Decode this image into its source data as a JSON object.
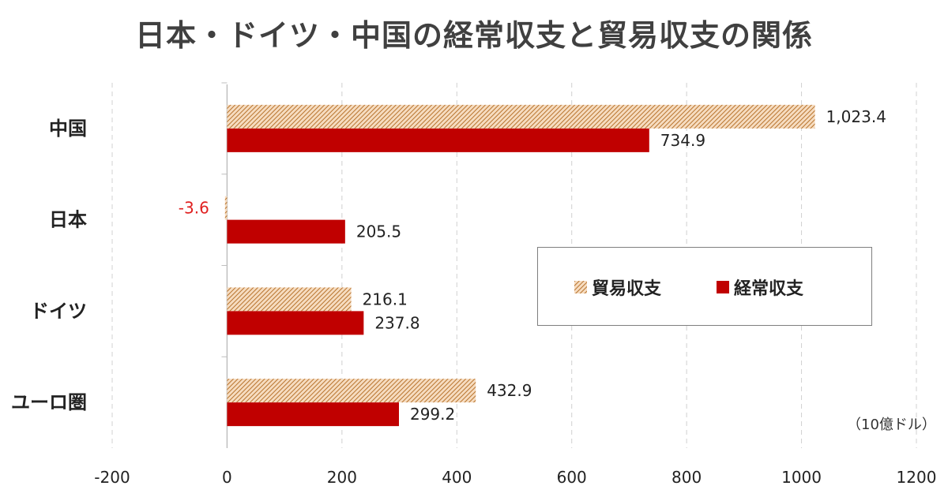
{
  "chart_data": {
    "type": "bar",
    "orientation": "horizontal",
    "title": "日本・ドイツ・中国の経常収支と貿易収支の関係",
    "unit": "（10億ドル）",
    "categories": [
      "中国",
      "日本",
      "ドイツ",
      "ユーロ圏"
    ],
    "series": [
      {
        "name": "貿易収支",
        "values": [
          1023.4,
          -3.6,
          216.1,
          432.9
        ],
        "labels": [
          "1,023.4",
          "-3.6",
          "216.1",
          "432.9"
        ],
        "color": "#c8843c",
        "pattern": "hatched"
      },
      {
        "name": "経常収支",
        "values": [
          734.9,
          205.5,
          237.8,
          299.2
        ],
        "labels": [
          "734.9",
          "205.5",
          "237.8",
          "299.2"
        ],
        "color": "#c00000",
        "pattern": "solid"
      }
    ],
    "xlim": [
      -200,
      1200
    ],
    "xticks": [
      -200,
      0,
      200,
      400,
      600,
      800,
      1000,
      1200
    ],
    "negative_label_color": "#e02020",
    "grid": "vertical dashed",
    "legend_position": "right-center"
  }
}
